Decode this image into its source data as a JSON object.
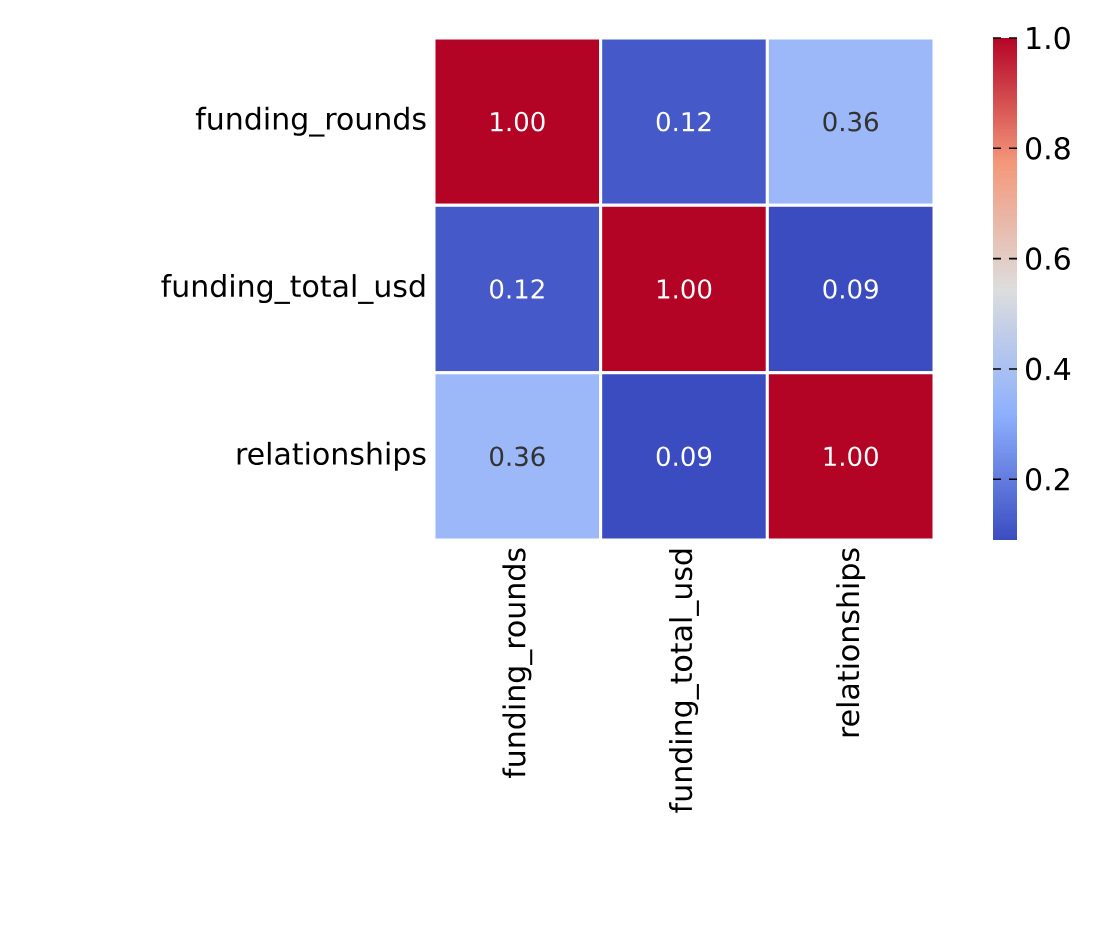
{
  "chart_data": {
    "type": "heatmap",
    "categories": [
      "funding_rounds",
      "funding_total_usd",
      "relationships"
    ],
    "y_categories": [
      "funding_rounds",
      "funding_total_usd",
      "relationships"
    ],
    "cells": [
      [
        1.0,
        0.12,
        0.36
      ],
      [
        0.12,
        1.0,
        0.09
      ],
      [
        0.36,
        0.09,
        1.0
      ]
    ],
    "cell_labels": [
      [
        "1.00",
        "0.12",
        "0.36"
      ],
      [
        "0.12",
        "1.00",
        "0.09"
      ],
      [
        "0.36",
        "0.09",
        "1.00"
      ]
    ],
    "clim": [
      0.09,
      1.0
    ],
    "cticks": [
      0.2,
      0.4,
      0.6,
      0.8,
      {
        "value": 1.0,
        "label": "1.0"
      }
    ]
  }
}
